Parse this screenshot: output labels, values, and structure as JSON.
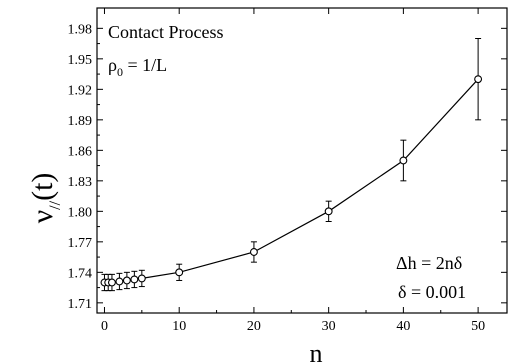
{
  "chart_data": {
    "type": "scatter",
    "xlabel": "n",
    "ylabel": "ν",
    "ylabel_sub": "//",
    "ylabel_suffix": "(t)",
    "xlim": [
      -1,
      54
    ],
    "ylim": [
      1.7,
      2.0
    ],
    "x_ticks": [
      0,
      10,
      20,
      30,
      40,
      50
    ],
    "y_ticks": [
      1.71,
      1.74,
      1.77,
      1.8,
      1.83,
      1.86,
      1.89,
      1.92,
      1.95,
      1.98
    ],
    "grid": false,
    "legend": "none",
    "annotations": {
      "top_left": {
        "line1": "Contact Process",
        "line2_main": "ρ",
        "line2_sub": "0",
        "line2_rest": " = 1/L"
      },
      "bottom_right": {
        "line1": "Δh = 2nδ",
        "line2": "δ = 0.001"
      }
    },
    "series": [
      {
        "marker": "open-circle",
        "line": true,
        "x": [
          0,
          0.5,
          1,
          2,
          3,
          4,
          5,
          10,
          20,
          30,
          40,
          50
        ],
        "y": [
          1.73,
          1.73,
          1.73,
          1.731,
          1.732,
          1.733,
          1.734,
          1.74,
          1.76,
          1.8,
          1.85,
          1.93
        ],
        "err": [
          0.008,
          0.008,
          0.008,
          0.008,
          0.008,
          0.008,
          0.008,
          0.008,
          0.01,
          0.01,
          0.02,
          0.04
        ]
      }
    ],
    "color": "#000000"
  }
}
